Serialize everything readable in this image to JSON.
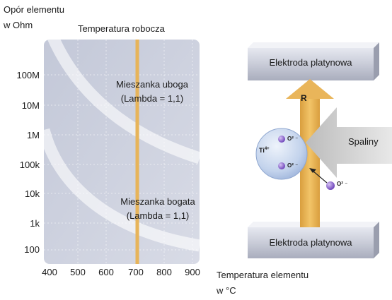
{
  "graph": {
    "y_axis_label": [
      "Opór elementu",
      "w Ohm"
    ],
    "x_axis_label": [
      "Temperatura elementu",
      "w °C"
    ],
    "operating_temp_label": "Temperatura robocza",
    "y_ticks": [
      "100M",
      "10M",
      "1M",
      "100k",
      "10k",
      "1k",
      "100"
    ],
    "x_ticks": [
      "400",
      "500",
      "600",
      "700",
      "800",
      "900"
    ],
    "lean_mixture": [
      "Mieszanka uboga",
      "(Lambda = 1,1)"
    ],
    "rich_mixture": [
      "Mieszanka bogata",
      "(Lambda = 1,1)"
    ]
  },
  "sensor": {
    "top_electrode": "Elektroda platynowa",
    "bottom_electrode": "Elektroda platynowa",
    "resistance_label": "R",
    "exhaust_label": "Spaliny",
    "titanium": "Ti",
    "titanium_charge": "4+",
    "oxygen_ion": "O² ⁻"
  }
}
